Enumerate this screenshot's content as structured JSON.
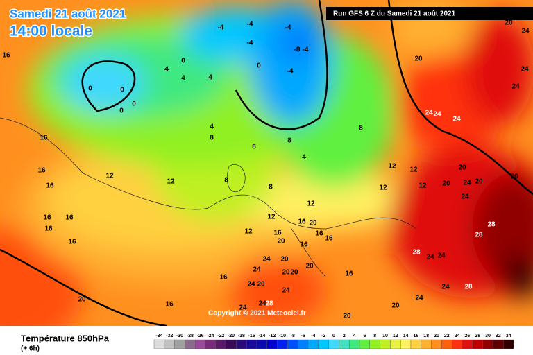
{
  "header": {
    "title": "Samedi 21 août 2021",
    "subtitle": "14:00 locale",
    "run": "Run GFS 6 Z du Samedi 21 août 2021"
  },
  "copyright": "Copyright © 2021 Meteociel.fr",
  "footer": {
    "title": "Température 850hPa",
    "step": "(+ 6h)"
  },
  "legend": {
    "items": [
      {
        "value": -34,
        "color": "#dcdcdc"
      },
      {
        "value": -32,
        "color": "#c0c0c0"
      },
      {
        "value": -30,
        "color": "#a0a0a0"
      },
      {
        "value": -28,
        "color": "#8a6a8a"
      },
      {
        "value": -26,
        "color": "#9a4a9a"
      },
      {
        "value": -24,
        "color": "#7a2a7a"
      },
      {
        "value": -22,
        "color": "#5a1a6a"
      },
      {
        "value": -20,
        "color": "#3a0a5a"
      },
      {
        "value": -18,
        "color": "#2a0a7a"
      },
      {
        "value": -16,
        "color": "#1a0a9a"
      },
      {
        "value": -14,
        "color": "#0a0ab0"
      },
      {
        "value": -12,
        "color": "#0000d0"
      },
      {
        "value": -10,
        "color": "#0020f0"
      },
      {
        "value": -8,
        "color": "#0050ff"
      },
      {
        "value": -6,
        "color": "#0080ff"
      },
      {
        "value": -4,
        "color": "#00a8ff"
      },
      {
        "value": -2,
        "color": "#00c8ff"
      },
      {
        "value": 0,
        "color": "#40d8ff"
      },
      {
        "value": 2,
        "color": "#40e0c0"
      },
      {
        "value": 4,
        "color": "#40e880"
      },
      {
        "value": 6,
        "color": "#60f040"
      },
      {
        "value": 8,
        "color": "#90f020"
      },
      {
        "value": 10,
        "color": "#c0f020"
      },
      {
        "value": 12,
        "color": "#e8f040"
      },
      {
        "value": 14,
        "color": "#fff060"
      },
      {
        "value": 16,
        "color": "#ffd040"
      },
      {
        "value": 18,
        "color": "#ffb030"
      },
      {
        "value": 20,
        "color": "#ff9020"
      },
      {
        "value": 22,
        "color": "#ff6010"
      },
      {
        "value": 24,
        "color": "#ff3010"
      },
      {
        "value": 26,
        "color": "#e01010"
      },
      {
        "value": 28,
        "color": "#c00000"
      },
      {
        "value": 30,
        "color": "#900000"
      },
      {
        "value": 32,
        "color": "#600000"
      },
      {
        "value": 34,
        "color": "#300000"
      }
    ]
  },
  "map": {
    "contour_labels": [
      16,
      16,
      16,
      16,
      16,
      16,
      16,
      16,
      12,
      12,
      16,
      16,
      20,
      0,
      0,
      0,
      0,
      0,
      0,
      4,
      4,
      4,
      -4,
      -4,
      -4,
      -4,
      -8,
      -4,
      -4,
      4,
      8,
      8,
      8,
      8,
      4,
      8,
      12,
      12,
      12,
      12,
      12,
      12,
      12,
      8,
      16,
      20,
      16,
      16,
      20,
      16,
      16,
      20,
      20,
      24,
      24,
      24,
      20,
      20,
      20,
      24,
      24,
      24,
      28,
      16,
      20,
      20,
      24,
      24,
      28,
      28,
      24,
      24,
      28,
      28,
      24,
      24,
      20,
      20,
      20,
      20,
      24,
      24,
      24,
      20,
      20,
      24,
      24,
      24
    ]
  }
}
